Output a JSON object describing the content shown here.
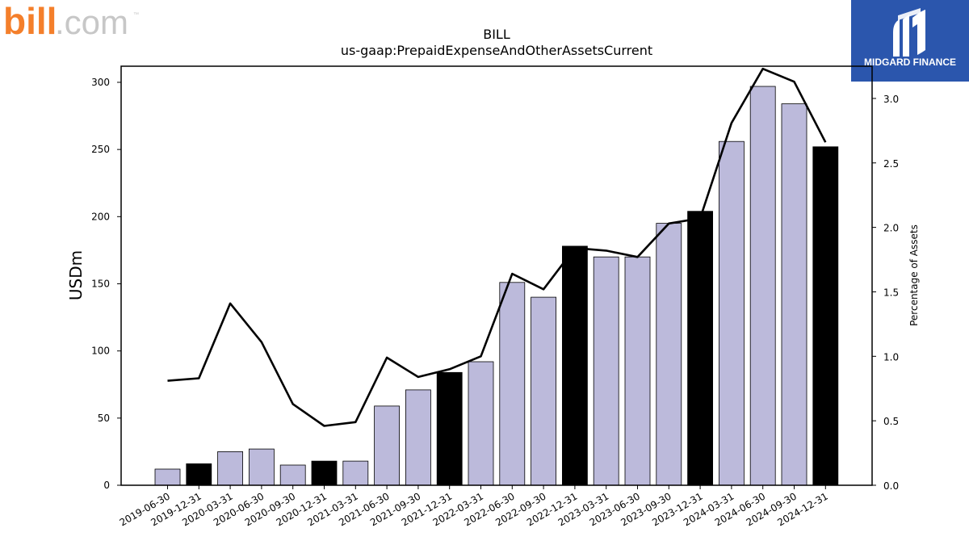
{
  "logos": {
    "bill_brand": "bill",
    "bill_suffix": ".com",
    "bill_tm": "™",
    "midgard_name": "MIDGARD FINANCE"
  },
  "colors": {
    "bar_default": "#bcbadb",
    "bar_year_end": "#000000",
    "line": "#000000",
    "bill_orange": "#f47f2b",
    "bill_gray": "#c7c7c7",
    "midgard_bg": "#2b56ad"
  },
  "chart_data": {
    "type": "bar",
    "title": "BILL",
    "subtitle": "us-gaap:PrepaidExpenseAndOtherAssetsCurrent",
    "ylabel": "USDm",
    "y2label": "Percentage of Assets",
    "ylim": [
      0,
      312
    ],
    "y2lim": [
      0,
      3.25
    ],
    "yticks": [
      0,
      50,
      100,
      150,
      200,
      250,
      300
    ],
    "y2ticks": [
      "0.0",
      "0.5",
      "1.0",
      "1.5",
      "2.0",
      "2.5",
      "3.0"
    ],
    "categories": [
      "2019-06-30",
      "2019-12-31",
      "2020-03-31",
      "2020-06-30",
      "2020-09-30",
      "2020-12-31",
      "2021-03-31",
      "2021-06-30",
      "2021-09-30",
      "2021-12-31",
      "2022-03-31",
      "2022-06-30",
      "2022-09-30",
      "2022-12-31",
      "2023-03-31",
      "2023-06-30",
      "2023-09-30",
      "2023-12-31",
      "2024-03-31",
      "2024-06-30",
      "2024-09-30",
      "2024-12-31"
    ],
    "series": [
      {
        "type": "bar",
        "values": [
          12,
          16,
          25,
          27,
          15,
          18,
          18,
          59,
          71,
          84,
          92,
          151,
          140,
          178,
          170,
          170,
          195,
          204,
          256,
          297,
          284,
          252
        ],
        "highlight": [
          false,
          true,
          false,
          false,
          false,
          true,
          false,
          false,
          false,
          true,
          false,
          false,
          false,
          true,
          false,
          false,
          false,
          true,
          false,
          false,
          false,
          true
        ]
      },
      {
        "type": "line",
        "axis": "right",
        "values": [
          0.81,
          0.83,
          1.41,
          1.11,
          0.63,
          0.46,
          0.49,
          0.99,
          0.84,
          0.9,
          1.0,
          1.64,
          1.52,
          1.84,
          1.82,
          1.77,
          2.03,
          2.07,
          2.81,
          3.23,
          3.13,
          2.66
        ]
      }
    ]
  }
}
